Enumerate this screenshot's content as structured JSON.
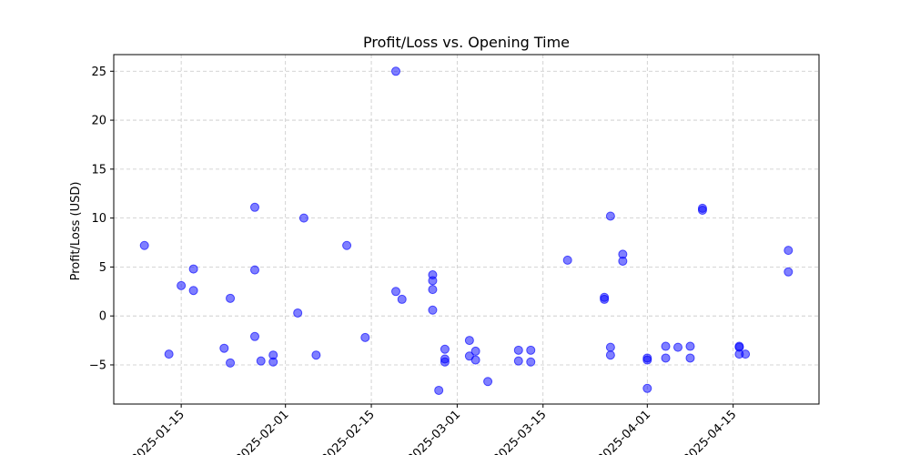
{
  "chart_data": {
    "type": "scatter",
    "title": "Profit/Loss vs. Opening Time",
    "xlabel": "",
    "ylabel": "Profit/Loss (USD)",
    "x_type": "date",
    "xlim": [
      "2025-01-04",
      "2025-04-29"
    ],
    "ylim": [
      -9,
      26.7
    ],
    "x_ticks": [
      "2025-01-15",
      "2025-02-01",
      "2025-02-15",
      "2025-03-01",
      "2025-03-15",
      "2025-04-01",
      "2025-04-15"
    ],
    "x_tick_labels": [
      "2025-01-15",
      "2025-02-01",
      "2025-02-15",
      "2025-03-01",
      "2025-03-15",
      "2025-04-01",
      "2025-04-15"
    ],
    "y_ticks": [
      -5,
      0,
      5,
      10,
      15,
      20,
      25
    ],
    "y_tick_labels": [
      "−5",
      "0",
      "5",
      "10",
      "15",
      "20",
      "25"
    ],
    "grid": true,
    "marker_color": "#0000ff",
    "marker_alpha": 0.5,
    "points": [
      {
        "x": "2025-01-09",
        "y": 7.2
      },
      {
        "x": "2025-01-13",
        "y": -3.9
      },
      {
        "x": "2025-01-15",
        "y": 3.1
      },
      {
        "x": "2025-01-17",
        "y": 4.8
      },
      {
        "x": "2025-01-17",
        "y": 2.6
      },
      {
        "x": "2025-01-22",
        "y": -3.3
      },
      {
        "x": "2025-01-23",
        "y": 1.8
      },
      {
        "x": "2025-01-23",
        "y": -4.8
      },
      {
        "x": "2025-01-27",
        "y": 11.1
      },
      {
        "x": "2025-01-27",
        "y": 4.7
      },
      {
        "x": "2025-01-27",
        "y": -2.1
      },
      {
        "x": "2025-01-28",
        "y": -4.6
      },
      {
        "x": "2025-01-30",
        "y": -4.7
      },
      {
        "x": "2025-01-30",
        "y": -4.0
      },
      {
        "x": "2025-02-03",
        "y": 0.3
      },
      {
        "x": "2025-02-04",
        "y": 10.0
      },
      {
        "x": "2025-02-06",
        "y": -4.0
      },
      {
        "x": "2025-02-11",
        "y": 7.2
      },
      {
        "x": "2025-02-14",
        "y": -2.2
      },
      {
        "x": "2025-02-19",
        "y": 25.0
      },
      {
        "x": "2025-02-19",
        "y": 2.5
      },
      {
        "x": "2025-02-20",
        "y": 1.7
      },
      {
        "x": "2025-02-25",
        "y": 3.6
      },
      {
        "x": "2025-02-25",
        "y": 4.2
      },
      {
        "x": "2025-02-25",
        "y": 2.7
      },
      {
        "x": "2025-02-25",
        "y": 0.6
      },
      {
        "x": "2025-02-26",
        "y": -7.6
      },
      {
        "x": "2025-02-27",
        "y": -3.4
      },
      {
        "x": "2025-02-27",
        "y": -4.4
      },
      {
        "x": "2025-02-27",
        "y": -4.7
      },
      {
        "x": "2025-03-03",
        "y": -2.5
      },
      {
        "x": "2025-03-03",
        "y": -4.1
      },
      {
        "x": "2025-03-04",
        "y": -3.6
      },
      {
        "x": "2025-03-04",
        "y": -4.5
      },
      {
        "x": "2025-03-06",
        "y": -6.7
      },
      {
        "x": "2025-03-11",
        "y": -3.5
      },
      {
        "x": "2025-03-11",
        "y": -4.6
      },
      {
        "x": "2025-03-13",
        "y": -3.5
      },
      {
        "x": "2025-03-13",
        "y": -4.7
      },
      {
        "x": "2025-03-19",
        "y": 5.7
      },
      {
        "x": "2025-03-25",
        "y": 1.9
      },
      {
        "x": "2025-03-25",
        "y": 1.7
      },
      {
        "x": "2025-03-26",
        "y": 10.2
      },
      {
        "x": "2025-03-26",
        "y": -3.2
      },
      {
        "x": "2025-03-26",
        "y": -4.0
      },
      {
        "x": "2025-03-28",
        "y": 5.6
      },
      {
        "x": "2025-03-28",
        "y": 6.3
      },
      {
        "x": "2025-04-01",
        "y": -4.3
      },
      {
        "x": "2025-04-01",
        "y": -4.5
      },
      {
        "x": "2025-04-01",
        "y": -7.4
      },
      {
        "x": "2025-04-04",
        "y": -3.1
      },
      {
        "x": "2025-04-04",
        "y": -4.3
      },
      {
        "x": "2025-04-06",
        "y": -3.2
      },
      {
        "x": "2025-04-08",
        "y": -3.1
      },
      {
        "x": "2025-04-08",
        "y": -4.3
      },
      {
        "x": "2025-04-10",
        "y": 11.0
      },
      {
        "x": "2025-04-10",
        "y": 10.8
      },
      {
        "x": "2025-04-16",
        "y": -3.1
      },
      {
        "x": "2025-04-16",
        "y": -3.2
      },
      {
        "x": "2025-04-16",
        "y": -3.9
      },
      {
        "x": "2025-04-17",
        "y": -3.9
      },
      {
        "x": "2025-04-24",
        "y": 6.7
      },
      {
        "x": "2025-04-24",
        "y": 4.5
      }
    ]
  }
}
